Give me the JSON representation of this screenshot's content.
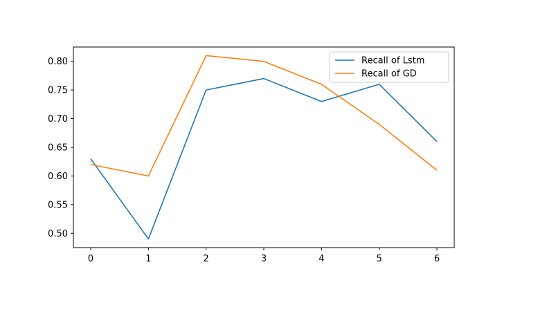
{
  "chart_data": {
    "type": "line",
    "x": [
      0,
      1,
      2,
      3,
      4,
      5,
      6
    ],
    "xlim": [
      -0.3,
      6.3
    ],
    "ylim": [
      0.475,
      0.825
    ],
    "xticks": [
      "0",
      "1",
      "2",
      "3",
      "4",
      "5",
      "6"
    ],
    "yticks": [
      "0.50",
      "0.55",
      "0.60",
      "0.65",
      "0.70",
      "0.75",
      "0.80"
    ],
    "ytick_values": [
      0.5,
      0.55,
      0.6,
      0.65,
      0.7,
      0.75,
      0.8
    ],
    "grid": false,
    "legend_position": "top-right",
    "series": [
      {
        "name": "Recall of Lstm",
        "color": "#1f77b4",
        "values": [
          0.63,
          0.49,
          0.75,
          0.77,
          0.73,
          0.76,
          0.66
        ]
      },
      {
        "name": "Recall of GD",
        "color": "#ff7f0e",
        "values": [
          0.62,
          0.6,
          0.81,
          0.8,
          0.76,
          0.69,
          0.61
        ]
      }
    ]
  }
}
